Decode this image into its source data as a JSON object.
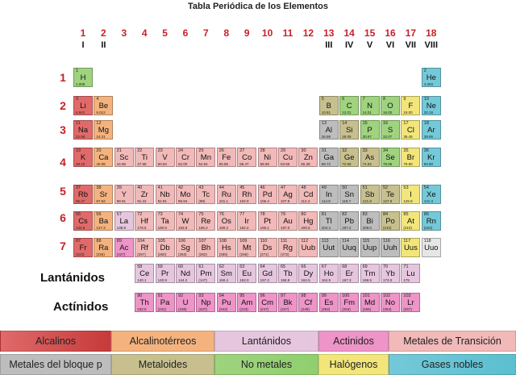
{
  "title": "Tabla Periódica de los Elementos",
  "colors": {
    "alkali": "#e06a6a",
    "alkaline": "#f4b37e",
    "lanthanide": "#e6c6de",
    "actinide": "#ee94c8",
    "transition": "#f2b9b9",
    "post": "#bdbdbd",
    "metalloid": "#c7c08e",
    "nonmetal": "#9fd37e",
    "halogen": "#f2e57a",
    "noble": "#74c9d8",
    "unknown": "#e6e6e6"
  },
  "groups": [
    {
      "num": "1",
      "roman": "I"
    },
    {
      "num": "2",
      "roman": "II"
    },
    {
      "num": "3",
      "roman": ""
    },
    {
      "num": "4",
      "roman": ""
    },
    {
      "num": "5",
      "roman": ""
    },
    {
      "num": "6",
      "roman": ""
    },
    {
      "num": "7",
      "roman": ""
    },
    {
      "num": "8",
      "roman": ""
    },
    {
      "num": "9",
      "roman": ""
    },
    {
      "num": "10",
      "roman": ""
    },
    {
      "num": "11",
      "roman": ""
    },
    {
      "num": "12",
      "roman": ""
    },
    {
      "num": "13",
      "roman": "III"
    },
    {
      "num": "14",
      "roman": "IV"
    },
    {
      "num": "15",
      "roman": "V"
    },
    {
      "num": "16",
      "roman": "VI"
    },
    {
      "num": "17",
      "roman": "VII"
    },
    {
      "num": "18",
      "roman": "VIII"
    }
  ],
  "periods": [
    "1",
    "2",
    "3",
    "4",
    "5",
    "6",
    "7"
  ],
  "row_labels": {
    "lanthanides": "Lantánidos",
    "actinides": "Actínidos"
  },
  "elements": [
    {
      "n": "1",
      "s": "H",
      "m": "1.008",
      "r": 1,
      "c": 1,
      "t": "nonmetal"
    },
    {
      "n": "2",
      "s": "He",
      "m": "4.003",
      "r": 1,
      "c": 18,
      "t": "noble"
    },
    {
      "n": "3",
      "s": "Li",
      "m": "6.941",
      "r": 2,
      "c": 1,
      "t": "alkali"
    },
    {
      "n": "4",
      "s": "Be",
      "m": "9.012",
      "r": 2,
      "c": 2,
      "t": "alkaline"
    },
    {
      "n": "5",
      "s": "B",
      "m": "10.81",
      "r": 2,
      "c": 13,
      "t": "metalloid"
    },
    {
      "n": "6",
      "s": "C",
      "m": "12.01",
      "r": 2,
      "c": 14,
      "t": "nonmetal"
    },
    {
      "n": "7",
      "s": "N",
      "m": "14.01",
      "r": 2,
      "c": 15,
      "t": "nonmetal"
    },
    {
      "n": "8",
      "s": "O",
      "m": "16.00",
      "r": 2,
      "c": 16,
      "t": "nonmetal"
    },
    {
      "n": "9",
      "s": "F",
      "m": "19.00",
      "r": 2,
      "c": 17,
      "t": "halogen"
    },
    {
      "n": "10",
      "s": "Ne",
      "m": "20.18",
      "r": 2,
      "c": 18,
      "t": "noble"
    },
    {
      "n": "11",
      "s": "Na",
      "m": "22.99",
      "r": 3,
      "c": 1,
      "t": "alkali"
    },
    {
      "n": "12",
      "s": "Mg",
      "m": "24.31",
      "r": 3,
      "c": 2,
      "t": "alkaline"
    },
    {
      "n": "13",
      "s": "Al",
      "m": "26.98",
      "r": 3,
      "c": 13,
      "t": "post"
    },
    {
      "n": "14",
      "s": "Si",
      "m": "28.09",
      "r": 3,
      "c": 14,
      "t": "metalloid"
    },
    {
      "n": "15",
      "s": "P",
      "m": "30.97",
      "r": 3,
      "c": 15,
      "t": "nonmetal"
    },
    {
      "n": "16",
      "s": "S",
      "m": "32.07",
      "r": 3,
      "c": 16,
      "t": "nonmetal"
    },
    {
      "n": "17",
      "s": "Cl",
      "m": "35.45",
      "r": 3,
      "c": 17,
      "t": "halogen"
    },
    {
      "n": "18",
      "s": "Ar",
      "m": "39.95",
      "r": 3,
      "c": 18,
      "t": "noble"
    },
    {
      "n": "19",
      "s": "K",
      "m": "39.10",
      "r": 4,
      "c": 1,
      "t": "alkali"
    },
    {
      "n": "20",
      "s": "Ca",
      "m": "40.08",
      "r": 4,
      "c": 2,
      "t": "alkaline"
    },
    {
      "n": "21",
      "s": "Sc",
      "m": "44.96",
      "r": 4,
      "c": 3,
      "t": "transition"
    },
    {
      "n": "22",
      "s": "Ti",
      "m": "47.88",
      "r": 4,
      "c": 4,
      "t": "transition"
    },
    {
      "n": "23",
      "s": "V",
      "m": "50.94",
      "r": 4,
      "c": 5,
      "t": "transition"
    },
    {
      "n": "24",
      "s": "Cr",
      "m": "52.00",
      "r": 4,
      "c": 6,
      "t": "transition"
    },
    {
      "n": "25",
      "s": "Mn",
      "m": "54.94",
      "r": 4,
      "c": 7,
      "t": "transition"
    },
    {
      "n": "26",
      "s": "Fe",
      "m": "55.85",
      "r": 4,
      "c": 8,
      "t": "transition"
    },
    {
      "n": "27",
      "s": "Co",
      "m": "58.47",
      "r": 4,
      "c": 9,
      "t": "transition"
    },
    {
      "n": "28",
      "s": "Ni",
      "m": "58.69",
      "r": 4,
      "c": 10,
      "t": "transition"
    },
    {
      "n": "29",
      "s": "Cu",
      "m": "63.55",
      "r": 4,
      "c": 11,
      "t": "transition"
    },
    {
      "n": "30",
      "s": "Zn",
      "m": "65.39",
      "r": 4,
      "c": 12,
      "t": "transition"
    },
    {
      "n": "31",
      "s": "Ga",
      "m": "69.72",
      "r": 4,
      "c": 13,
      "t": "post"
    },
    {
      "n": "32",
      "s": "Ge",
      "m": "72.59",
      "r": 4,
      "c": 14,
      "t": "metalloid"
    },
    {
      "n": "33",
      "s": "As",
      "m": "74.92",
      "r": 4,
      "c": 15,
      "t": "metalloid"
    },
    {
      "n": "34",
      "s": "Se",
      "m": "78.96",
      "r": 4,
      "c": 16,
      "t": "nonmetal"
    },
    {
      "n": "35",
      "s": "Br",
      "m": "79.90",
      "r": 4,
      "c": 17,
      "t": "halogen"
    },
    {
      "n": "36",
      "s": "Kr",
      "m": "83.80",
      "r": 4,
      "c": 18,
      "t": "noble"
    },
    {
      "n": "37",
      "s": "Rb",
      "m": "85.47",
      "r": 5,
      "c": 1,
      "t": "alkali"
    },
    {
      "n": "38",
      "s": "Sr",
      "m": "87.62",
      "r": 5,
      "c": 2,
      "t": "alkaline"
    },
    {
      "n": "39",
      "s": "Y",
      "m": "88.91",
      "r": 5,
      "c": 3,
      "t": "transition"
    },
    {
      "n": "40",
      "s": "Zr",
      "m": "91.22",
      "r": 5,
      "c": 4,
      "t": "transition"
    },
    {
      "n": "41",
      "s": "Nb",
      "m": "92.91",
      "r": 5,
      "c": 5,
      "t": "transition"
    },
    {
      "n": "42",
      "s": "Mo",
      "m": "95.94",
      "r": 5,
      "c": 6,
      "t": "transition"
    },
    {
      "n": "43",
      "s": "Tc",
      "m": "(98)",
      "r": 5,
      "c": 7,
      "t": "transition"
    },
    {
      "n": "44",
      "s": "Ru",
      "m": "101.1",
      "r": 5,
      "c": 8,
      "t": "transition"
    },
    {
      "n": "45",
      "s": "Rh",
      "m": "102.9",
      "r": 5,
      "c": 9,
      "t": "transition"
    },
    {
      "n": "46",
      "s": "Pd",
      "m": "106.4",
      "r": 5,
      "c": 10,
      "t": "transition"
    },
    {
      "n": "47",
      "s": "Ag",
      "m": "107.9",
      "r": 5,
      "c": 11,
      "t": "transition"
    },
    {
      "n": "48",
      "s": "Cd",
      "m": "112.4",
      "r": 5,
      "c": 12,
      "t": "transition"
    },
    {
      "n": "49",
      "s": "In",
      "m": "114.8",
      "r": 5,
      "c": 13,
      "t": "post"
    },
    {
      "n": "50",
      "s": "Sn",
      "m": "118.7",
      "r": 5,
      "c": 14,
      "t": "post"
    },
    {
      "n": "51",
      "s": "Sb",
      "m": "121.8",
      "r": 5,
      "c": 15,
      "t": "metalloid"
    },
    {
      "n": "52",
      "s": "Te",
      "m": "127.6",
      "r": 5,
      "c": 16,
      "t": "metalloid"
    },
    {
      "n": "53",
      "s": "I",
      "m": "126.9",
      "r": 5,
      "c": 17,
      "t": "halogen"
    },
    {
      "n": "54",
      "s": "Xe",
      "m": "131.3",
      "r": 5,
      "c": 18,
      "t": "noble"
    },
    {
      "n": "55",
      "s": "Cs",
      "m": "132.9",
      "r": 6,
      "c": 1,
      "t": "alkali"
    },
    {
      "n": "56",
      "s": "Ba",
      "m": "137.3",
      "r": 6,
      "c": 2,
      "t": "alkaline"
    },
    {
      "n": "57",
      "s": "La",
      "m": "138.9",
      "r": 6,
      "c": 3,
      "t": "lanthanide"
    },
    {
      "n": "72",
      "s": "Hf",
      "m": "178.5",
      "r": 6,
      "c": 4,
      "t": "transition"
    },
    {
      "n": "73",
      "s": "Ta",
      "m": "180.9",
      "r": 6,
      "c": 5,
      "t": "transition"
    },
    {
      "n": "74",
      "s": "W",
      "m": "183.9",
      "r": 6,
      "c": 6,
      "t": "transition"
    },
    {
      "n": "75",
      "s": "Re",
      "m": "186.2",
      "r": 6,
      "c": 7,
      "t": "transition"
    },
    {
      "n": "76",
      "s": "Os",
      "m": "190.2",
      "r": 6,
      "c": 8,
      "t": "transition"
    },
    {
      "n": "77",
      "s": "Ir",
      "m": "192.2",
      "r": 6,
      "c": 9,
      "t": "transition"
    },
    {
      "n": "78",
      "s": "Pt",
      "m": "195.1",
      "r": 6,
      "c": 10,
      "t": "transition"
    },
    {
      "n": "79",
      "s": "Au",
      "m": "197.0",
      "r": 6,
      "c": 11,
      "t": "transition"
    },
    {
      "n": "80",
      "s": "Hg",
      "m": "200.5",
      "r": 6,
      "c": 12,
      "t": "transition"
    },
    {
      "n": "81",
      "s": "Tl",
      "m": "204.4",
      "r": 6,
      "c": 13,
      "t": "post"
    },
    {
      "n": "82",
      "s": "Pb",
      "m": "207.2",
      "r": 6,
      "c": 14,
      "t": "post"
    },
    {
      "n": "83",
      "s": "Bi",
      "m": "209.0",
      "r": 6,
      "c": 15,
      "t": "post"
    },
    {
      "n": "84",
      "s": "Po",
      "m": "(210)",
      "r": 6,
      "c": 16,
      "t": "metalloid"
    },
    {
      "n": "85",
      "s": "At",
      "m": "(210)",
      "r": 6,
      "c": 17,
      "t": "halogen"
    },
    {
      "n": "86",
      "s": "Rn",
      "m": "(222)",
      "r": 6,
      "c": 18,
      "t": "noble"
    },
    {
      "n": "87",
      "s": "Fr",
      "m": "(223)",
      "r": 7,
      "c": 1,
      "t": "alkali"
    },
    {
      "n": "88",
      "s": "Ra",
      "m": "(226)",
      "r": 7,
      "c": 2,
      "t": "alkaline"
    },
    {
      "n": "89",
      "s": "Ac",
      "m": "(227)",
      "r": 7,
      "c": 3,
      "t": "actinide"
    },
    {
      "n": "104",
      "s": "Rf",
      "m": "(257)",
      "r": 7,
      "c": 4,
      "t": "transition"
    },
    {
      "n": "105",
      "s": "Db",
      "m": "(260)",
      "r": 7,
      "c": 5,
      "t": "transition"
    },
    {
      "n": "106",
      "s": "Sg",
      "m": "(263)",
      "r": 7,
      "c": 6,
      "t": "transition"
    },
    {
      "n": "107",
      "s": "Bh",
      "m": "(262)",
      "r": 7,
      "c": 7,
      "t": "transition"
    },
    {
      "n": "108",
      "s": "Hs",
      "m": "(265)",
      "r": 7,
      "c": 8,
      "t": "transition"
    },
    {
      "n": "109",
      "s": "Mt",
      "m": "(266)",
      "r": 7,
      "c": 9,
      "t": "transition"
    },
    {
      "n": "110",
      "s": "Ds",
      "m": "(271)",
      "r": 7,
      "c": 10,
      "t": "transition"
    },
    {
      "n": "111",
      "s": "Rg",
      "m": "(272)",
      "r": 7,
      "c": 11,
      "t": "transition"
    },
    {
      "n": "112",
      "s": "Uub",
      "m": "",
      "r": 7,
      "c": 12,
      "t": "transition"
    },
    {
      "n": "113",
      "s": "Uut",
      "m": "",
      "r": 7,
      "c": 13,
      "t": "post"
    },
    {
      "n": "114",
      "s": "Uuq",
      "m": "",
      "r": 7,
      "c": 14,
      "t": "post"
    },
    {
      "n": "115",
      "s": "Uup",
      "m": "",
      "r": 7,
      "c": 15,
      "t": "post"
    },
    {
      "n": "116",
      "s": "Uuh",
      "m": "",
      "r": 7,
      "c": 16,
      "t": "post"
    },
    {
      "n": "117",
      "s": "Uus",
      "m": "",
      "r": 7,
      "c": 17,
      "t": "halogen"
    },
    {
      "n": "118",
      "s": "Uuo",
      "m": "",
      "r": 7,
      "c": 18,
      "t": "unknown"
    },
    {
      "n": "58",
      "s": "Ce",
      "m": "140.1",
      "r": 8,
      "c": 4,
      "t": "lanthanide"
    },
    {
      "n": "59",
      "s": "Pr",
      "m": "140.9",
      "r": 8,
      "c": 5,
      "t": "lanthanide"
    },
    {
      "n": "60",
      "s": "Nd",
      "m": "144.2",
      "r": 8,
      "c": 6,
      "t": "lanthanide"
    },
    {
      "n": "61",
      "s": "Pm",
      "m": "(147)",
      "r": 8,
      "c": 7,
      "t": "lanthanide"
    },
    {
      "n": "62",
      "s": "Sm",
      "m": "150.4",
      "r": 8,
      "c": 8,
      "t": "lanthanide"
    },
    {
      "n": "63",
      "s": "Eu",
      "m": "152.0",
      "r": 8,
      "c": 9,
      "t": "lanthanide"
    },
    {
      "n": "64",
      "s": "Gd",
      "m": "157.3",
      "r": 8,
      "c": 10,
      "t": "lanthanide"
    },
    {
      "n": "65",
      "s": "Tb",
      "m": "158.9",
      "r": 8,
      "c": 11,
      "t": "lanthanide"
    },
    {
      "n": "66",
      "s": "Dy",
      "m": "162.5",
      "r": 8,
      "c": 12,
      "t": "lanthanide"
    },
    {
      "n": "67",
      "s": "Ho",
      "m": "164.9",
      "r": 8,
      "c": 13,
      "t": "lanthanide"
    },
    {
      "n": "68",
      "s": "Er",
      "m": "167.3",
      "r": 8,
      "c": 14,
      "t": "lanthanide"
    },
    {
      "n": "69",
      "s": "Tm",
      "m": "168.9",
      "r": 8,
      "c": 15,
      "t": "lanthanide"
    },
    {
      "n": "70",
      "s": "Yb",
      "m": "173.0",
      "r": 8,
      "c": 16,
      "t": "lanthanide"
    },
    {
      "n": "71",
      "s": "Lu",
      "m": "175",
      "r": 8,
      "c": 17,
      "t": "lanthanide"
    },
    {
      "n": "90",
      "s": "Th",
      "m": "232.0",
      "r": 9,
      "c": 4,
      "t": "actinide"
    },
    {
      "n": "91",
      "s": "Pa",
      "m": "(231)",
      "r": 9,
      "c": 5,
      "t": "actinide"
    },
    {
      "n": "92",
      "s": "U",
      "m": "(238)",
      "r": 9,
      "c": 6,
      "t": "actinide"
    },
    {
      "n": "93",
      "s": "Np",
      "m": "(237)",
      "r": 9,
      "c": 7,
      "t": "actinide"
    },
    {
      "n": "94",
      "s": "Pu",
      "m": "(242)",
      "r": 9,
      "c": 8,
      "t": "actinide"
    },
    {
      "n": "95",
      "s": "Am",
      "m": "(243)",
      "r": 9,
      "c": 9,
      "t": "actinide"
    },
    {
      "n": "96",
      "s": "Cm",
      "m": "(247)",
      "r": 9,
      "c": 10,
      "t": "actinide"
    },
    {
      "n": "97",
      "s": "Bk",
      "m": "(247)",
      "r": 9,
      "c": 11,
      "t": "actinide"
    },
    {
      "n": "98",
      "s": "Cf",
      "m": "(249)",
      "r": 9,
      "c": 12,
      "t": "actinide"
    },
    {
      "n": "99",
      "s": "Es",
      "m": "(254)",
      "r": 9,
      "c": 13,
      "t": "actinide"
    },
    {
      "n": "100",
      "s": "Fm",
      "m": "(253)",
      "r": 9,
      "c": 14,
      "t": "actinide"
    },
    {
      "n": "101",
      "s": "Md",
      "m": "(256)",
      "r": 9,
      "c": 15,
      "t": "actinide"
    },
    {
      "n": "102",
      "s": "No",
      "m": "(254)",
      "r": 9,
      "c": 16,
      "t": "actinide"
    },
    {
      "n": "103",
      "s": "Lr",
      "m": "(257)",
      "r": 9,
      "c": 17,
      "t": "actinide"
    }
  ],
  "legend": [
    {
      "label": "Alcalinos",
      "t": "alkali",
      "dark": "#c63a3a"
    },
    {
      "label": "Alcalinotérreos",
      "t": "alkaline",
      "dark": "#f4b37e"
    },
    {
      "label": "Lantánidos",
      "t": "lanthanide",
      "dark": "#e6c6de"
    },
    {
      "label": "Actinidos",
      "t": "actinide",
      "dark": "#ee94c8"
    },
    {
      "label": "Metales de Transición",
      "t": "transition",
      "dark": "#f2b9b9"
    },
    {
      "label": "Metales del bloque p",
      "t": "post",
      "dark": "#bdbdbd"
    },
    {
      "label": "Metaloides",
      "t": "metalloid",
      "dark": "#c7c08e"
    },
    {
      "label": "No metales",
      "t": "nonmetal",
      "dark": "#8fcf6e"
    },
    {
      "label": "Halógenos",
      "t": "halogen",
      "dark": "#f2e57a"
    },
    {
      "label": "Gases nobles",
      "t": "noble",
      "dark": "#5bbfd0"
    }
  ]
}
